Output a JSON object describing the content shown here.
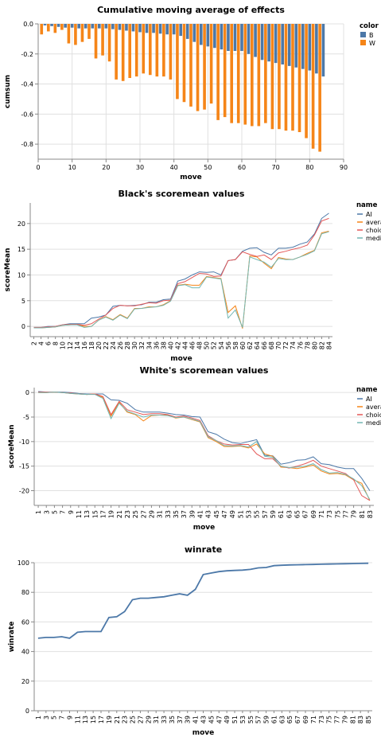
{
  "chart_data": [
    {
      "type": "bar",
      "title": "Cumulative moving average of effects",
      "xlabel": "move",
      "ylabel": "cumsum",
      "xlim": [
        0,
        90
      ],
      "ylim": [
        -0.9,
        0
      ],
      "x_ticks": [
        0,
        10,
        20,
        30,
        40,
        50,
        60,
        70,
        80,
        90
      ],
      "y_ticks": [
        0,
        -0.2,
        -0.4,
        -0.6,
        -0.8
      ],
      "y_tick_labels": [
        "0.0",
        "-0.2",
        "-0.4",
        "-0.6",
        "-0.8"
      ],
      "legend": {
        "title": "color",
        "position": "right"
      },
      "series": [
        {
          "name": "B",
          "color": "#4c78a8",
          "x": [
            2,
            4,
            6,
            8,
            10,
            12,
            14,
            16,
            18,
            20,
            22,
            24,
            26,
            28,
            30,
            32,
            34,
            36,
            38,
            40,
            42,
            44,
            46,
            48,
            50,
            52,
            54,
            56,
            58,
            60,
            62,
            64,
            66,
            68,
            70,
            72,
            74,
            76,
            78,
            80,
            82,
            84
          ],
          "values": [
            -0.01,
            -0.015,
            -0.02,
            -0.025,
            -0.025,
            -0.03,
            -0.03,
            -0.03,
            -0.03,
            -0.03,
            -0.035,
            -0.04,
            -0.045,
            -0.05,
            -0.055,
            -0.06,
            -0.06,
            -0.065,
            -0.07,
            -0.07,
            -0.08,
            -0.1,
            -0.12,
            -0.14,
            -0.15,
            -0.16,
            -0.17,
            -0.18,
            -0.18,
            -0.18,
            -0.2,
            -0.22,
            -0.24,
            -0.25,
            -0.26,
            -0.27,
            -0.28,
            -0.29,
            -0.3,
            -0.31,
            -0.33,
            -0.35
          ]
        },
        {
          "name": "W",
          "color": "#f58518",
          "x": [
            1,
            3,
            5,
            7,
            9,
            11,
            13,
            15,
            17,
            19,
            21,
            23,
            25,
            27,
            29,
            31,
            33,
            35,
            37,
            39,
            41,
            43,
            45,
            47,
            49,
            51,
            53,
            55,
            57,
            59,
            61,
            63,
            65,
            67,
            69,
            71,
            73,
            75,
            77,
            79,
            81,
            83
          ],
          "values": [
            -0.07,
            -0.05,
            -0.06,
            -0.04,
            -0.13,
            -0.14,
            -0.12,
            -0.1,
            -0.23,
            -0.21,
            -0.25,
            -0.37,
            -0.38,
            -0.36,
            -0.35,
            -0.33,
            -0.34,
            -0.35,
            -0.35,
            -0.37,
            -0.5,
            -0.52,
            -0.55,
            -0.58,
            -0.57,
            -0.53,
            -0.64,
            -0.62,
            -0.66,
            -0.66,
            -0.67,
            -0.68,
            -0.68,
            -0.66,
            -0.7,
            -0.7,
            -0.71,
            -0.71,
            -0.72,
            -0.76,
            -0.83,
            -0.85
          ]
        }
      ]
    },
    {
      "type": "line",
      "title": "Black's scoremean values",
      "xlabel": "move",
      "ylabel": "scoreMean",
      "ylim": [
        -2,
        24
      ],
      "y_ticks": [
        0,
        5,
        10,
        15,
        20
      ],
      "x": [
        2,
        4,
        6,
        8,
        10,
        12,
        14,
        16,
        18,
        20,
        22,
        24,
        26,
        28,
        30,
        32,
        34,
        36,
        38,
        40,
        42,
        44,
        46,
        48,
        50,
        52,
        54,
        56,
        58,
        60,
        62,
        64,
        66,
        68,
        70,
        72,
        74,
        76,
        78,
        80,
        82,
        84
      ],
      "legend": {
        "title": "name",
        "position": "right"
      },
      "series": [
        {
          "name": "AI",
          "color": "#4c78a8",
          "values": [
            -0.2,
            -0.2,
            0.0,
            0.0,
            0.3,
            0.5,
            0.5,
            0.5,
            1.6,
            1.8,
            2.2,
            3.9,
            4.1,
            4.0,
            4.1,
            4.2,
            4.7,
            4.7,
            5.2,
            5.3,
            8.8,
            9.2,
            10.0,
            10.6,
            10.5,
            10.6,
            10.0,
            12.8,
            13.0,
            14.6,
            15.2,
            15.3,
            14.4,
            13.9,
            15.2,
            15.2,
            15.4,
            16.0,
            16.4,
            18.0,
            21.0,
            22.0
          ]
        },
        {
          "name": "average",
          "color": "#f58518",
          "values": [
            -0.3,
            -0.3,
            -0.2,
            -0.1,
            0.2,
            0.3,
            0.4,
            0.0,
            0.0,
            1.2,
            1.9,
            1.3,
            2.3,
            1.6,
            3.5,
            3.5,
            3.8,
            3.8,
            4.2,
            5.0,
            8.0,
            8.2,
            8.0,
            8.0,
            9.7,
            9.5,
            9.3,
            2.7,
            4.0,
            -0.4,
            13.7,
            13.5,
            12.3,
            11.2,
            13.4,
            13.1,
            13.0,
            13.5,
            14.2,
            14.8,
            18.2,
            18.5
          ]
        },
        {
          "name": "choice",
          "color": "#e45756",
          "values": [
            -0.2,
            -0.2,
            -0.1,
            0.0,
            0.3,
            0.4,
            0.4,
            0.2,
            0.5,
            1.4,
            2.2,
            3.5,
            4.1,
            4.0,
            4.0,
            4.3,
            4.6,
            4.5,
            5.0,
            5.1,
            8.3,
            8.7,
            9.5,
            10.3,
            10.2,
            9.7,
            9.8,
            12.8,
            13.0,
            14.5,
            14.0,
            13.6,
            13.9,
            13.0,
            14.3,
            14.6,
            15.0,
            15.3,
            15.8,
            17.8,
            20.5,
            21.0
          ]
        },
        {
          "name": "median",
          "color": "#72b7b2",
          "values": [
            -0.3,
            -0.3,
            -0.2,
            -0.1,
            0.2,
            0.3,
            0.3,
            -0.2,
            0.0,
            1.2,
            1.8,
            1.2,
            2.2,
            1.5,
            3.4,
            3.5,
            3.7,
            3.8,
            4.1,
            4.9,
            7.9,
            8.1,
            7.5,
            7.5,
            9.6,
            9.4,
            9.2,
            1.6,
            3.2,
            -0.2,
            13.5,
            13.0,
            12.5,
            11.5,
            13.2,
            13.0,
            13.0,
            13.5,
            14.0,
            14.7,
            18.0,
            18.4
          ]
        }
      ]
    },
    {
      "type": "line",
      "title": "White's scoremean values",
      "xlabel": "move",
      "ylabel": "scoreMean",
      "ylim": [
        -23,
        1
      ],
      "y_ticks": [
        0,
        -5,
        -10,
        -15,
        -20
      ],
      "x": [
        1,
        3,
        5,
        7,
        9,
        11,
        13,
        15,
        17,
        19,
        21,
        23,
        25,
        27,
        29,
        31,
        33,
        35,
        37,
        39,
        41,
        43,
        45,
        47,
        49,
        51,
        53,
        55,
        57,
        59,
        61,
        63,
        65,
        67,
        69,
        71,
        73,
        75,
        77,
        79,
        81,
        83
      ],
      "legend": {
        "title": "name",
        "position": "right"
      },
      "series": [
        {
          "name": "AI",
          "color": "#4c78a8",
          "values": [
            0.2,
            0.1,
            0.1,
            0.1,
            0.0,
            -0.2,
            -0.3,
            -0.3,
            -0.3,
            -1.5,
            -1.6,
            -2.2,
            -3.5,
            -4.0,
            -4.0,
            -4.0,
            -4.2,
            -4.5,
            -4.6,
            -4.9,
            -5.0,
            -8.0,
            -8.5,
            -9.5,
            -10.2,
            -10.4,
            -10.0,
            -9.6,
            -12.8,
            -12.9,
            -14.6,
            -14.3,
            -13.8,
            -13.7,
            -13.1,
            -14.5,
            -14.7,
            -15.2,
            -15.5,
            -15.5,
            -17.5,
            -20.0
          ]
        },
        {
          "name": "average",
          "color": "#f58518",
          "values": [
            0.0,
            0.0,
            0.1,
            0.0,
            -0.2,
            -0.3,
            -0.4,
            -0.3,
            -1.0,
            -4.8,
            -2.0,
            -4.0,
            -4.5,
            -5.8,
            -4.7,
            -4.6,
            -4.6,
            -5.2,
            -5.0,
            -5.5,
            -6.0,
            -9.2,
            -10.0,
            -11.0,
            -11.0,
            -10.9,
            -11.3,
            -10.5,
            -12.5,
            -13.0,
            -15.2,
            -15.3,
            -15.5,
            -15.2,
            -14.8,
            -16.0,
            -16.6,
            -16.5,
            -16.8,
            -17.8,
            -18.5,
            -22.0
          ]
        },
        {
          "name": "choice",
          "color": "#e45756",
          "values": [
            0.1,
            0.1,
            0.1,
            0.0,
            -0.1,
            -0.3,
            -0.4,
            -0.3,
            -0.8,
            -4.5,
            -1.8,
            -3.5,
            -4.0,
            -4.5,
            -4.3,
            -4.3,
            -4.5,
            -5.0,
            -4.8,
            -5.2,
            -5.7,
            -8.8,
            -9.8,
            -10.5,
            -10.7,
            -10.6,
            -10.6,
            -12.5,
            -13.5,
            -13.5,
            -15.0,
            -15.4,
            -15.0,
            -14.5,
            -13.8,
            -15.0,
            -15.5,
            -16.0,
            -16.5,
            -17.8,
            -21.0,
            -22.0
          ]
        },
        {
          "name": "median",
          "color": "#72b7b2",
          "values": [
            0.0,
            0.0,
            0.1,
            0.0,
            -0.2,
            -0.3,
            -0.4,
            -0.4,
            -1.2,
            -5.3,
            -2.2,
            -3.8,
            -4.4,
            -5.0,
            -4.6,
            -4.6,
            -4.7,
            -5.1,
            -5.0,
            -5.4,
            -5.9,
            -9.0,
            -9.8,
            -10.8,
            -10.9,
            -10.8,
            -11.1,
            -10.0,
            -13.0,
            -13.2,
            -15.0,
            -15.3,
            -15.2,
            -15.0,
            -14.5,
            -15.7,
            -16.4,
            -16.3,
            -16.7,
            -17.6,
            -19.0,
            -21.8
          ]
        }
      ]
    },
    {
      "type": "line",
      "title": "winrate",
      "xlabel": "move",
      "ylabel": "winrate",
      "ylim": [
        0,
        100
      ],
      "y_ticks": [
        0,
        20,
        40,
        60,
        80,
        100
      ],
      "x": [
        1,
        3,
        5,
        7,
        9,
        11,
        13,
        15,
        17,
        19,
        21,
        23,
        25,
        27,
        29,
        31,
        33,
        35,
        37,
        39,
        41,
        43,
        45,
        47,
        49,
        51,
        53,
        55,
        57,
        59,
        61,
        63,
        65,
        67,
        69,
        71,
        73,
        75,
        77,
        79,
        81,
        83,
        85
      ],
      "series": [
        {
          "name": "winrate",
          "color": "#4c78a8",
          "values": [
            49,
            49.5,
            49.5,
            50,
            49,
            53,
            53.5,
            53.5,
            53.5,
            63,
            63.5,
            67,
            75,
            76,
            76,
            76.5,
            77,
            78,
            79,
            78,
            82,
            92,
            93,
            94,
            94.5,
            94.8,
            95,
            95.5,
            96.5,
            96.8,
            98,
            98.3,
            98.5,
            98.6,
            98.7,
            98.8,
            99,
            99.1,
            99.2,
            99.3,
            99.4,
            99.5,
            99.6
          ]
        }
      ]
    }
  ]
}
